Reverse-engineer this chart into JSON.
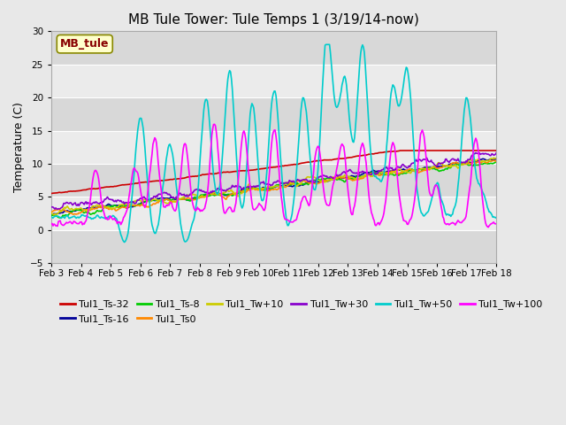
{
  "title": "MB Tule Tower: Tule Temps 1 (3/19/14-now)",
  "ylabel": "Temperature (C)",
  "ylim": [
    -5,
    30
  ],
  "yticks": [
    -5,
    0,
    5,
    10,
    15,
    20,
    25,
    30
  ],
  "xlim": [
    0,
    15
  ],
  "xtick_labels": [
    "Feb 3",
    "Feb 4",
    "Feb 5",
    "Feb 6",
    "Feb 7",
    "Feb 8",
    "Feb 9",
    "Feb 10",
    "Feb 11",
    "Feb 12",
    "Feb 13",
    "Feb 14",
    "Feb 15",
    "Feb 16",
    "Feb 17",
    "Feb 18"
  ],
  "xtick_positions": [
    0,
    1,
    2,
    3,
    4,
    5,
    6,
    7,
    8,
    9,
    10,
    11,
    12,
    13,
    14,
    15
  ],
  "series_order": [
    "Tul1_Ts-32",
    "Tul1_Ts-16",
    "Tul1_Ts-8",
    "Tul1_Ts0",
    "Tul1_Tw+10",
    "Tul1_Tw+30",
    "Tul1_Tw+50",
    "Tul1_Tw+100"
  ],
  "series": {
    "Tul1_Ts-32": {
      "color": "#cc0000",
      "lw": 1.2
    },
    "Tul1_Ts-16": {
      "color": "#000099",
      "lw": 1.2
    },
    "Tul1_Ts-8": {
      "color": "#00cc00",
      "lw": 1.2
    },
    "Tul1_Ts0": {
      "color": "#ff8800",
      "lw": 1.2
    },
    "Tul1_Tw+10": {
      "color": "#cccc00",
      "lw": 1.2
    },
    "Tul1_Tw+30": {
      "color": "#8800cc",
      "lw": 1.2
    },
    "Tul1_Tw+50": {
      "color": "#00cccc",
      "lw": 1.2
    },
    "Tul1_Tw+100": {
      "color": "#ff00ff",
      "lw": 1.2
    }
  },
  "legend_label": "MB_tule",
  "legend_box_facecolor": "#ffffcc",
  "legend_box_edgecolor": "#888800",
  "legend_text_color": "#880000",
  "fig_facecolor": "#e8e8e8",
  "band_light": "#ebebeb",
  "band_dark": "#d8d8d8",
  "title_fontsize": 11,
  "legend_ncol": 6,
  "legend_fontsize": 8
}
